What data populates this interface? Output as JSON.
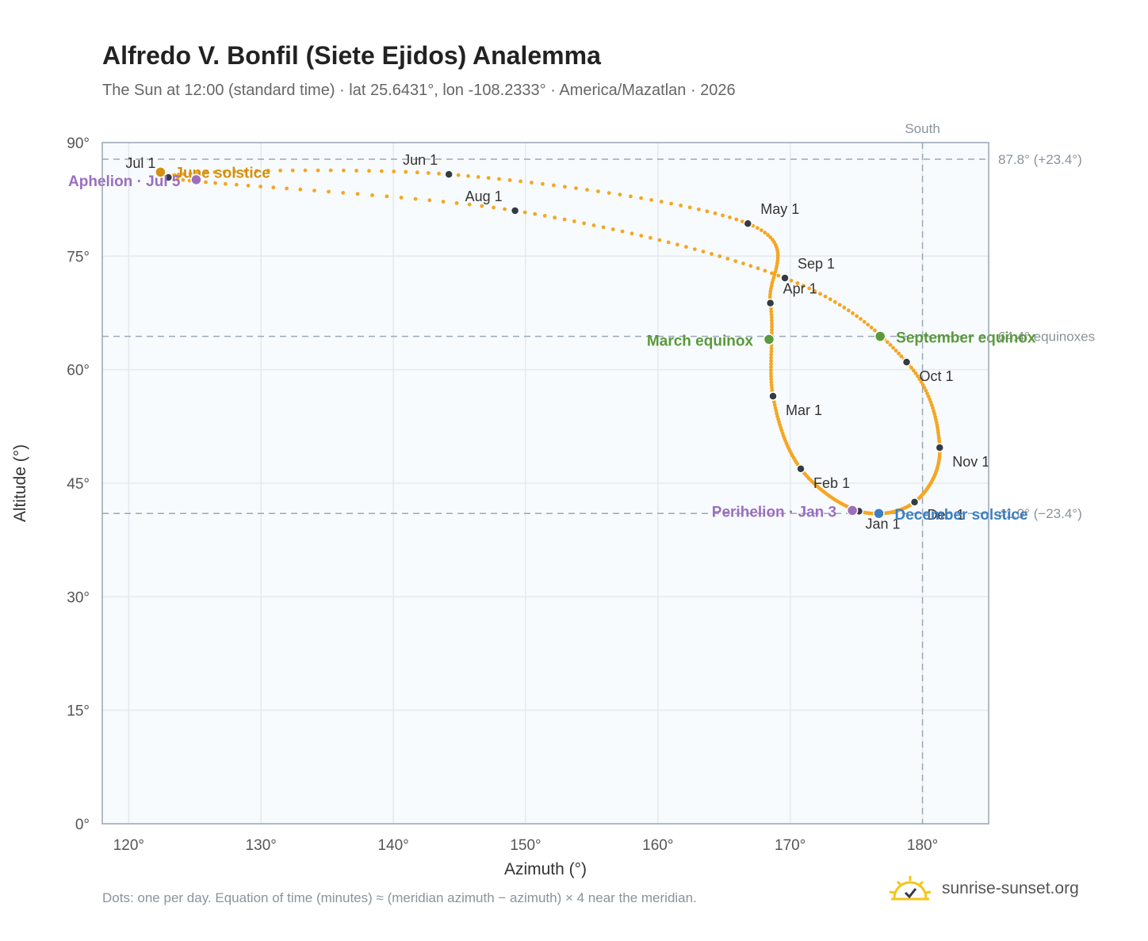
{
  "title": "Alfredo V. Bonfil (Siete Ejidos) Analemma",
  "subtitle": "The Sun at 12:00 (standard time) · lat 25.6431°, lon -108.2333° · America/Mazatlan · 2026",
  "footnote": "Dots: one per day. Equation of time (minutes) ≈ (meridian azimuth − azimuth) × 4 near the meridian.",
  "brand": {
    "name": "sunrise-sunset.org",
    "logo_icon": "sun-check-icon"
  },
  "chart_data": {
    "type": "scatter",
    "xlabel": "Azimuth (°)",
    "ylabel": "Altitude (°)",
    "xlim": [
      118,
      185
    ],
    "ylim": [
      0,
      90
    ],
    "x_ticks": [
      120,
      130,
      140,
      150,
      160,
      170,
      180
    ],
    "x_tick_labels": [
      "120°",
      "130°",
      "140°",
      "150°",
      "160°",
      "170°",
      "180°"
    ],
    "y_ticks": [
      0,
      15,
      30,
      45,
      60,
      75,
      90
    ],
    "y_tick_labels": [
      "0°",
      "15°",
      "30°",
      "45°",
      "60°",
      "75°",
      "90°"
    ],
    "grid": true,
    "colors": {
      "analemma": "#f5a623",
      "month_marker": "#333b45",
      "equinox": "#5a9a3a",
      "june_solstice": "#d4900e",
      "december_solstice": "#3d7fc1",
      "apsis": "#9b6fbf",
      "reference_line": "#9aa8b8",
      "plot_background": "#f8fbfd"
    },
    "reference_lines": [
      {
        "axis": "y",
        "value": 87.8,
        "label": "87.8° (+23.4°)"
      },
      {
        "axis": "y",
        "value": 64.4,
        "label": "64.4° equinoxes"
      },
      {
        "axis": "y",
        "value": 41.0,
        "label": "41.0° (−23.4°)"
      },
      {
        "axis": "x",
        "value": 180,
        "label": "South"
      }
    ],
    "month_markers": [
      {
        "label": "Jan 1",
        "az": 175.2,
        "alt": 41.3
      },
      {
        "label": "Feb 1",
        "az": 170.8,
        "alt": 46.9
      },
      {
        "label": "Mar 1",
        "az": 168.7,
        "alt": 56.5
      },
      {
        "label": "Apr 1",
        "az": 168.5,
        "alt": 68.8
      },
      {
        "label": "May 1",
        "az": 166.8,
        "alt": 79.3
      },
      {
        "label": "Jun 1",
        "az": 144.2,
        "alt": 85.8
      },
      {
        "label": "Jul 1",
        "az": 123.0,
        "alt": 85.4
      },
      {
        "label": "Aug 1",
        "az": 149.2,
        "alt": 81.0
      },
      {
        "label": "Sep 1",
        "az": 169.6,
        "alt": 72.1
      },
      {
        "label": "Oct 1",
        "az": 178.8,
        "alt": 61.0
      },
      {
        "label": "Nov 1",
        "az": 181.3,
        "alt": 49.7
      },
      {
        "label": "Dec 1",
        "az": 179.4,
        "alt": 42.5
      }
    ],
    "events": [
      {
        "label": "March equinox",
        "az": 168.4,
        "alt": 64.0,
        "kind": "equinox"
      },
      {
        "label": "September equinox",
        "az": 176.8,
        "alt": 64.4,
        "kind": "equinox"
      },
      {
        "label": "June solstice",
        "az": 122.4,
        "alt": 86.1,
        "kind": "june_solstice"
      },
      {
        "label": "December solstice",
        "az": 176.7,
        "alt": 41.0,
        "kind": "december_solstice"
      },
      {
        "label": "Aphelion · Jul 5",
        "az": 125.1,
        "alt": 85.1,
        "kind": "apsis"
      },
      {
        "label": "Perihelion · Jan 3",
        "az": 174.7,
        "alt": 41.4,
        "kind": "apsis"
      }
    ]
  }
}
